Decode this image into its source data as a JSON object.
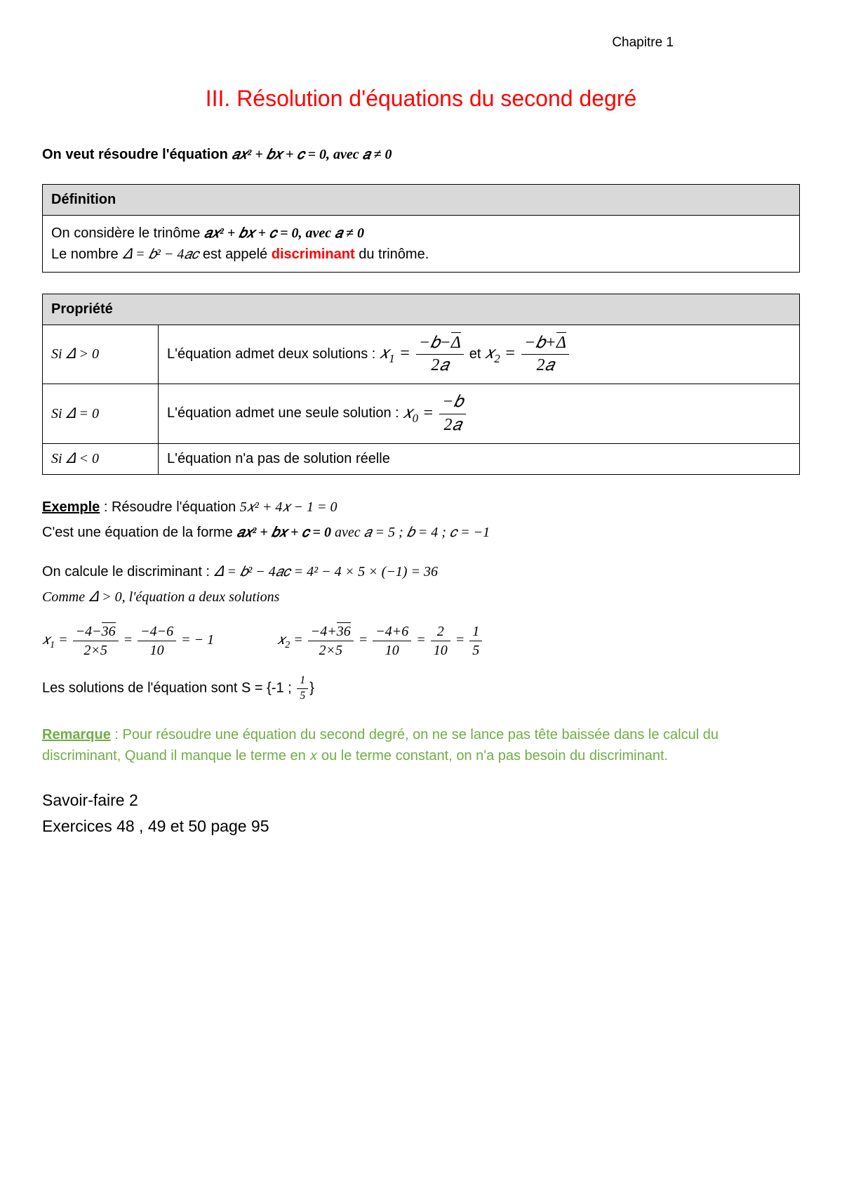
{
  "colors": {
    "title": "#ff0000",
    "discriminant": "#ff0000",
    "remark": "#70ad47",
    "text": "#000000",
    "header_bg": "#d9d9d9",
    "border": "#000000",
    "background": "#ffffff"
  },
  "chapter": "Chapitre 1",
  "title": "III. Résolution d'équations du second degré",
  "intro_prefix": "On veut résoudre l'équation ",
  "intro_eq": "𝑎𝑥² + 𝑏𝑥 + 𝑐 = 0",
  "intro_suffix": ", avec 𝑎 ≠ 0",
  "definition": {
    "header": "Définition",
    "line1_prefix": "On considère le trinôme ",
    "line1_eq": "𝑎𝑥² + 𝑏𝑥 + 𝑐 = 0, avec 𝑎 ≠ 0",
    "line2_prefix": "Le nombre ",
    "line2_eq": "𝛥 = 𝑏² − 4𝑎𝑐",
    "line2_mid": " est appelé ",
    "discriminant_word": "discriminant",
    "line2_suffix": " du trinôme."
  },
  "property": {
    "header": "Propriété",
    "rows": [
      {
        "condition": "Si 𝛥 > 0",
        "text_prefix": "L'équation admet deux solutions : ",
        "x1_label": "𝑥",
        "x1_sub": "1",
        "eq": " = ",
        "x1_num": "−𝑏−√Δ",
        "x1_den": "2𝑎",
        "mid": " et ",
        "x2_label": "𝑥",
        "x2_sub": "2",
        "x2_num": "−𝑏+√Δ",
        "x2_den": "2𝑎"
      },
      {
        "condition": "Si 𝛥 = 0",
        "text_prefix": "L'équation admet une seule solution : ",
        "x0_label": "𝑥",
        "x0_sub": "0",
        "eq": " = ",
        "x0_num": "−𝑏",
        "x0_den": "2𝑎"
      },
      {
        "condition": "Si 𝛥 < 0",
        "text": "L'équation n'a pas de solution réelle"
      }
    ]
  },
  "example": {
    "label": "Exemple",
    "colon": " : ",
    "resolve": "Résoudre l'équation ",
    "resolve_eq": "5𝑥² + 4𝑥 − 1 = 0",
    "form_prefix": "C'est une équation de la forme  ",
    "form_eq": "𝑎𝑥² + 𝑏𝑥 + 𝑐 = 0",
    "form_suffix": " avec  𝑎 = 5 ; 𝑏 = 4 ; 𝑐 = −1",
    "calc_prefix": "On calcule le discriminant : ",
    "calc_eq": "𝛥 = 𝑏² − 4𝑎𝑐 = 4² − 4 × 5 × (−1) = 36",
    "comme": "Comme 𝛥 > 0, l'équation a deux solutions",
    "x1": {
      "label": "𝑥",
      "sub": "1",
      "eq": " = ",
      "f1_num": "−4−√36",
      "f1_den": "2×5",
      "f2_num": "−4−6",
      "f2_den": "10",
      "result": " = − 1"
    },
    "x2": {
      "label": "𝑥",
      "sub": "2",
      "eq": " = ",
      "f1_num": "−4+√36",
      "f1_den": "2×5",
      "f2_num": "−4+6",
      "f2_den": "10",
      "f3_num": "2",
      "f3_den": "10",
      "f4_num": "1",
      "f4_den": "5"
    },
    "solutions_prefix": "Les solutions de l'équation sont S = {-1 ; ",
    "sol_frac_num": "1",
    "sol_frac_den": "5",
    "solutions_suffix": "}"
  },
  "remark": {
    "label": "Remarque",
    "colon": " : ",
    "text": "Pour résoudre une équation du second degré, on ne se lance pas tête baissée dans le calcul du discriminant, Quand il manque le terme en 𝑥 ou le terme constant, on n'a pas besoin du discriminant."
  },
  "savoir": {
    "line1": "Savoir-faire 2",
    "line2": "Exercices 48 , 49 et 50 page 95"
  }
}
